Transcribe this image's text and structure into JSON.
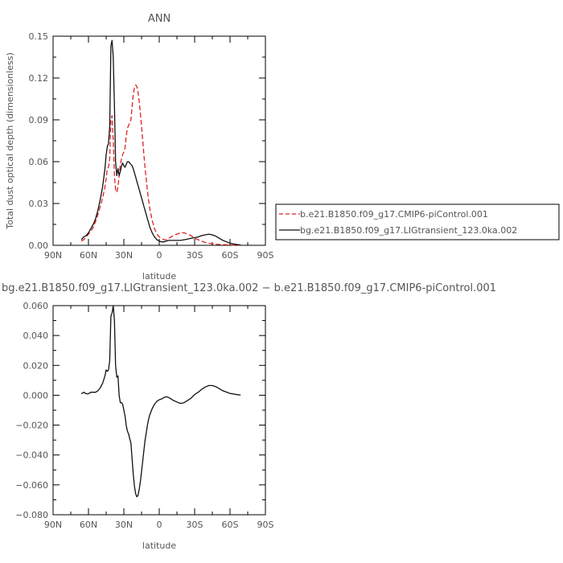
{
  "chart_data": [
    {
      "type": "line",
      "title": "ANN",
      "xlabel": "latitude",
      "ylabel": "Total dust optical depth (dimensionless)",
      "xlim": [
        90,
        -90
      ],
      "ylim": [
        0,
        0.15
      ],
      "x_ticks": [
        90,
        60,
        30,
        0,
        -30,
        -60,
        -90
      ],
      "x_tick_labels": [
        "90N",
        "60N",
        "30N",
        "0",
        "30S",
        "60S",
        "90S"
      ],
      "y_ticks": [
        0,
        0.03,
        0.06,
        0.09,
        0.12,
        0.15
      ],
      "y_tick_labels": [
        "0.00",
        "0.03",
        "0.06",
        "0.09",
        "0.12",
        "0.15"
      ],
      "legend_placement": "right",
      "series": [
        {
          "name": "b.e21.B1850.f09_g17.CMIP6-piControl.001",
          "color": "#dd2222",
          "dash": "dashed",
          "x": [
            66,
            64,
            62,
            60,
            58,
            56,
            54,
            52,
            50,
            48,
            46,
            45,
            44,
            43,
            42,
            41,
            40,
            39,
            38,
            37,
            36,
            35,
            34,
            33,
            32,
            31,
            30,
            29,
            28,
            27,
            26,
            25,
            24,
            23,
            22,
            21,
            20,
            19,
            18,
            17,
            16,
            15,
            14,
            13,
            12,
            11,
            10,
            9,
            8,
            6,
            4,
            2,
            0,
            -2,
            -4,
            -6,
            -8,
            -10,
            -12,
            -15,
            -18,
            -21,
            -24,
            -27,
            -30,
            -33,
            -36,
            -39,
            -42,
            -45,
            -48,
            -51,
            -54,
            -57,
            -60,
            -63,
            -66,
            -69
          ],
          "y": [
            0.003,
            0.004,
            0.006,
            0.008,
            0.01,
            0.013,
            0.017,
            0.022,
            0.028,
            0.034,
            0.042,
            0.048,
            0.055,
            0.056,
            0.062,
            0.09,
            0.093,
            0.075,
            0.05,
            0.04,
            0.038,
            0.042,
            0.05,
            0.058,
            0.062,
            0.065,
            0.067,
            0.07,
            0.078,
            0.084,
            0.086,
            0.088,
            0.09,
            0.1,
            0.108,
            0.113,
            0.115,
            0.114,
            0.11,
            0.103,
            0.095,
            0.085,
            0.075,
            0.065,
            0.055,
            0.047,
            0.039,
            0.032,
            0.026,
            0.018,
            0.012,
            0.008,
            0.006,
            0.005,
            0.004,
            0.004,
            0.005,
            0.006,
            0.007,
            0.008,
            0.009,
            0.009,
            0.008,
            0.007,
            0.005,
            0.004,
            0.003,
            0.002,
            0.0015,
            0.001,
            0.0008,
            0.0006,
            0.0005,
            0.0004,
            0.0003,
            0.0002,
            0.0002,
            0.0001
          ]
        },
        {
          "name": "bg.e21.B1850.f09_g17.LIGtransient_123.0ka.002",
          "color": "#111111",
          "dash": "solid",
          "x": [
            66,
            64,
            62,
            60,
            58,
            56,
            54,
            52,
            50,
            48,
            46,
            45,
            44,
            43,
            42,
            41,
            40,
            39,
            38,
            37,
            36,
            35,
            34,
            33,
            32,
            31,
            30,
            29,
            28,
            27,
            26,
            25,
            24,
            23,
            22,
            21,
            20,
            19,
            18,
            17,
            16,
            15,
            14,
            13,
            12,
            11,
            10,
            9,
            8,
            6,
            4,
            2,
            0,
            -2,
            -4,
            -6,
            -8,
            -10,
            -12,
            -15,
            -18,
            -21,
            -24,
            -27,
            -30,
            -33,
            -36,
            -39,
            -42,
            -45,
            -48,
            -51,
            -54,
            -57,
            -60,
            -63,
            -66,
            -69
          ],
          "y": [
            0.004,
            0.006,
            0.007,
            0.009,
            0.012,
            0.015,
            0.019,
            0.025,
            0.033,
            0.042,
            0.055,
            0.065,
            0.071,
            0.073,
            0.085,
            0.143,
            0.147,
            0.135,
            0.1,
            0.06,
            0.05,
            0.055,
            0.05,
            0.053,
            0.057,
            0.059,
            0.057,
            0.056,
            0.058,
            0.06,
            0.06,
            0.059,
            0.058,
            0.057,
            0.055,
            0.052,
            0.049,
            0.046,
            0.043,
            0.04,
            0.037,
            0.034,
            0.031,
            0.028,
            0.025,
            0.022,
            0.019,
            0.016,
            0.013,
            0.009,
            0.006,
            0.004,
            0.003,
            0.0025,
            0.0025,
            0.003,
            0.0035,
            0.0035,
            0.0035,
            0.0035,
            0.0035,
            0.004,
            0.0045,
            0.005,
            0.0055,
            0.006,
            0.007,
            0.0075,
            0.008,
            0.0075,
            0.0065,
            0.005,
            0.0035,
            0.0025,
            0.0015,
            0.001,
            0.0006,
            0.0003
          ]
        }
      ]
    },
    {
      "type": "line",
      "title": "bg.e21.B1850.f09_g17.LIGtransient_123.0ka.002 − b.e21.B1850.f09_g17.CMIP6-piControl.001",
      "xlabel": "latitude",
      "ylabel": "",
      "xlim": [
        90,
        -90
      ],
      "ylim": [
        -0.08,
        0.06
      ],
      "x_ticks": [
        90,
        60,
        30,
        0,
        -30,
        -60,
        -90
      ],
      "x_tick_labels": [
        "90N",
        "60N",
        "30N",
        "0",
        "30S",
        "60S",
        "90S"
      ],
      "y_ticks": [
        -0.08,
        -0.06,
        -0.04,
        -0.02,
        0,
        0.02,
        0.04,
        0.06
      ],
      "y_tick_labels": [
        "−0.080",
        "−0.060",
        "−0.040",
        "−0.020",
        "0.000",
        "0.020",
        "0.040",
        "0.060"
      ],
      "series": [
        {
          "color": "#111111",
          "dash": "solid",
          "x": [
            66,
            64,
            62,
            60,
            58,
            56,
            54,
            52,
            50,
            48,
            46,
            45,
            44,
            43,
            42,
            41,
            40,
            39,
            38,
            37,
            36,
            35,
            34,
            33,
            32,
            31,
            30,
            29,
            28,
            27,
            26,
            25,
            24,
            23,
            22,
            21,
            20,
            19,
            18,
            17,
            16,
            15,
            14,
            13,
            12,
            11,
            10,
            9,
            8,
            6,
            4,
            2,
            0,
            -2,
            -4,
            -6,
            -8,
            -10,
            -12,
            -15,
            -18,
            -21,
            -24,
            -27,
            -30,
            -33,
            -36,
            -39,
            -42,
            -45,
            -48,
            -51,
            -54,
            -57,
            -60,
            -63,
            -66,
            -69
          ],
          "y": [
            0.001,
            0.002,
            0.001,
            0.001,
            0.002,
            0.002,
            0.002,
            0.003,
            0.005,
            0.008,
            0.013,
            0.017,
            0.016,
            0.017,
            0.023,
            0.053,
            0.055,
            0.06,
            0.05,
            0.02,
            0.012,
            0.013,
            0.0,
            -0.005,
            -0.005,
            -0.006,
            -0.01,
            -0.014,
            -0.02,
            -0.024,
            -0.026,
            -0.029,
            -0.032,
            -0.043,
            -0.053,
            -0.061,
            -0.066,
            -0.068,
            -0.067,
            -0.063,
            -0.058,
            -0.051,
            -0.044,
            -0.037,
            -0.03,
            -0.025,
            -0.02,
            -0.016,
            -0.013,
            -0.009,
            -0.006,
            -0.004,
            -0.003,
            -0.0025,
            -0.0015,
            -0.001,
            -0.0015,
            -0.0025,
            -0.0035,
            -0.0045,
            -0.0055,
            -0.005,
            -0.0035,
            -0.002,
            0.0005,
            0.002,
            0.004,
            0.0055,
            0.0065,
            0.0065,
            0.0057,
            0.0044,
            0.003,
            0.0021,
            0.0012,
            0.0008,
            0.0004,
            0.0002
          ]
        }
      ]
    }
  ]
}
